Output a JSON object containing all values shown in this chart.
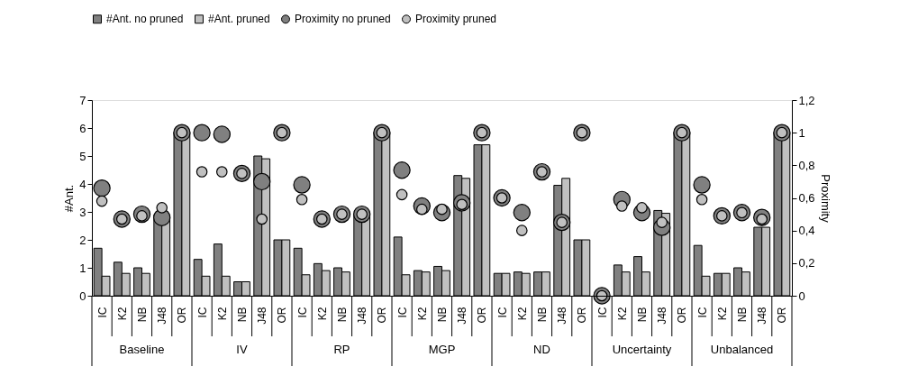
{
  "chart_data": {
    "type": "bar",
    "ylabel": "#Ant.",
    "y2label": "Proximity",
    "categories": [
      "IC",
      "K2",
      "NB",
      "J48",
      "OR",
      "IC",
      "K2",
      "NB",
      "J48",
      "OR",
      "IC",
      "K2",
      "NB",
      "J48",
      "OR",
      "IC",
      "K2",
      "NB",
      "J48",
      "OR",
      "IC",
      "K2",
      "NB",
      "J48",
      "OR",
      "IC",
      "K2",
      "NB",
      "J48",
      "OR",
      "IC",
      "K2",
      "NB",
      "J48",
      "OR"
    ],
    "annotations": [
      "Baseline",
      "IV",
      "RP",
      "MGP",
      "ND",
      "Uncertainty",
      "Unbalanced"
    ],
    "series": [
      {
        "name": "#Ant. no pruned",
        "color": "#808080",
        "values": [
          1.7,
          1.2,
          1.0,
          2.9,
          5.85,
          1.3,
          1.85,
          0.5,
          5.0,
          2.0,
          1.7,
          1.15,
          1.0,
          2.9,
          5.85,
          2.1,
          0.9,
          1.05,
          4.3,
          5.4,
          0.8,
          0.85,
          0.85,
          3.95,
          2.0,
          0.0,
          1.1,
          1.4,
          3.05,
          5.85,
          1.8,
          0.8,
          1.0,
          2.45,
          5.85
        ]
      },
      {
        "name": "#Ant. pruned",
        "color": "#c0c0c0",
        "values": [
          0.7,
          0.8,
          0.8,
          2.9,
          5.85,
          0.7,
          0.7,
          0.5,
          4.9,
          2.0,
          0.75,
          0.9,
          0.85,
          2.9,
          5.85,
          0.75,
          0.85,
          0.9,
          4.2,
          5.4,
          0.8,
          0.8,
          0.85,
          4.2,
          2.0,
          0.0,
          0.85,
          0.85,
          2.95,
          5.85,
          0.7,
          0.8,
          0.85,
          2.45,
          5.85
        ]
      },
      {
        "name": "Proximity no pruned",
        "type": "scatter",
        "axis": "y2",
        "color": "#808080",
        "values": [
          0.66,
          0.47,
          0.5,
          0.48,
          1.0,
          1.0,
          0.99,
          0.75,
          0.7,
          1.0,
          0.68,
          0.47,
          0.5,
          0.5,
          1.0,
          0.77,
          0.55,
          0.51,
          0.57,
          1.0,
          0.6,
          0.51,
          0.76,
          0.45,
          1.0,
          0.0,
          0.59,
          0.51,
          0.42,
          1.0,
          0.68,
          0.49,
          0.51,
          0.48,
          1.0
        ]
      },
      {
        "name": "Proximity pruned",
        "type": "scatter",
        "axis": "y2",
        "color": "#c0c0c0",
        "values": [
          0.58,
          0.47,
          0.49,
          0.54,
          1.0,
          0.76,
          0.76,
          0.75,
          0.47,
          1.0,
          0.59,
          0.47,
          0.5,
          0.5,
          1.0,
          0.62,
          0.53,
          0.53,
          0.56,
          1.0,
          0.6,
          0.4,
          0.76,
          0.45,
          1.0,
          0.0,
          0.55,
          0.54,
          0.45,
          1.0,
          0.59,
          0.49,
          0.51,
          0.47,
          1.0
        ]
      }
    ],
    "ylim": [
      0,
      7
    ],
    "yticks": [
      0,
      1,
      2,
      3,
      4,
      5,
      6,
      7
    ],
    "y2lim": [
      0,
      1.2
    ],
    "y2ticks": [
      0,
      {
        "value": 0.2,
        "label": "0,2"
      },
      {
        "value": 0.4,
        "label": "0,4"
      },
      {
        "value": 0.6,
        "label": "0,6"
      },
      {
        "value": 0.8,
        "label": "0,8"
      },
      1,
      {
        "value": 1.2,
        "label": "1,2"
      }
    ],
    "marker": "circle",
    "grid": false,
    "legend": "top"
  }
}
